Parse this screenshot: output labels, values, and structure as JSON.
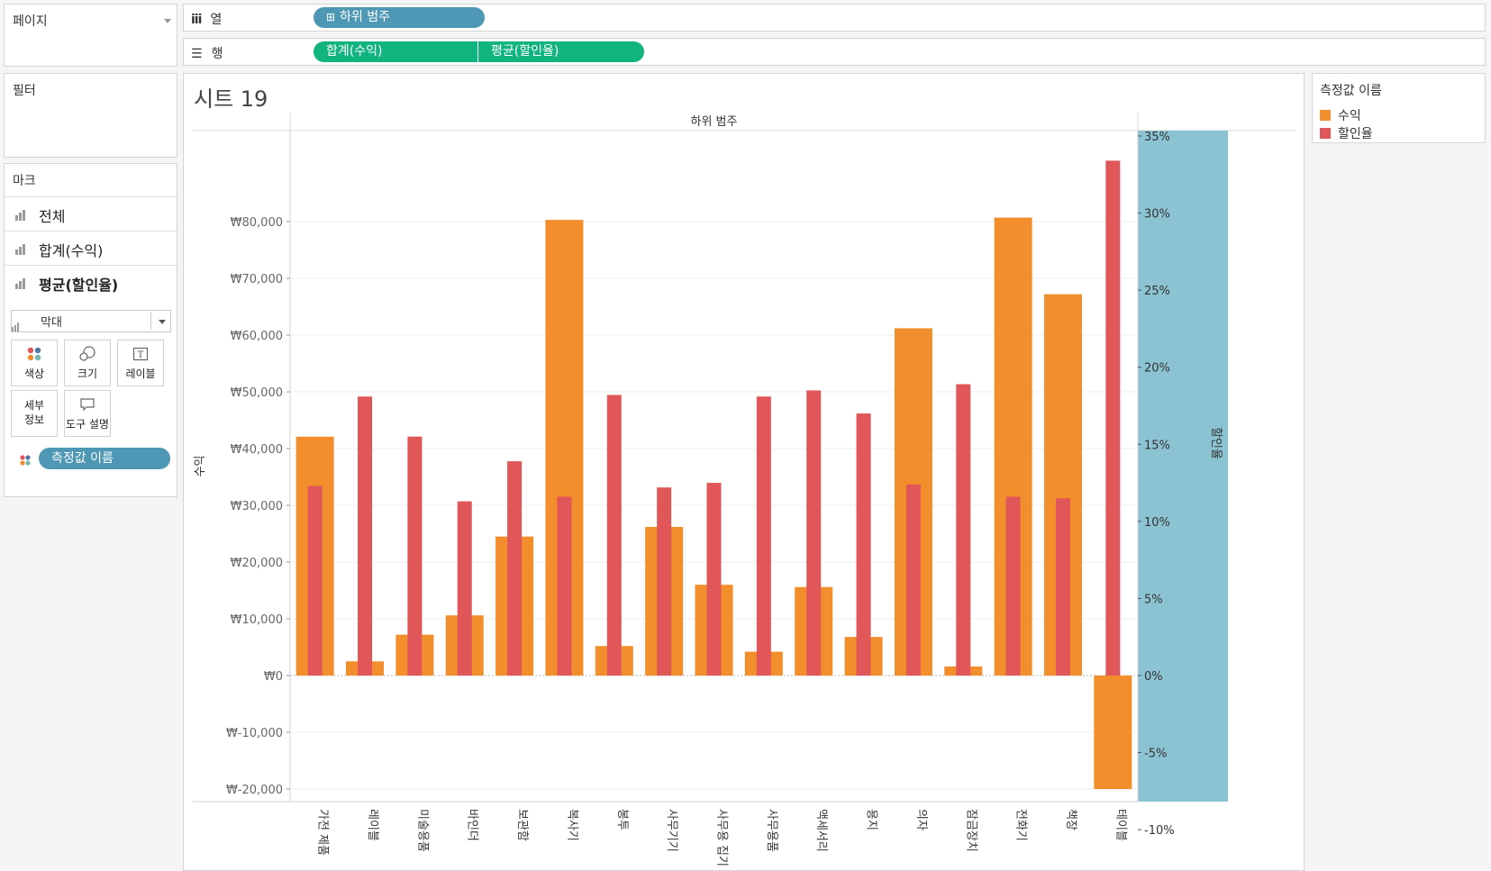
{
  "shelves": {
    "pages_label": "페이지",
    "filters_label": "필터",
    "columns_label": "열",
    "rows_label": "행",
    "columns_pill": "하위 범주",
    "rows_pills": [
      "합계(수익)",
      "평균(할인율)"
    ]
  },
  "marks": {
    "title": "마크",
    "rows": [
      "전체",
      "합계(수익)",
      "평균(할인율)"
    ],
    "mark_type": "막대",
    "cards": {
      "color": "색상",
      "size": "크기",
      "label": "레이블",
      "detail_line1": "세부",
      "detail_line2": "정보",
      "tooltip": "도구 설명"
    },
    "measure_pill": "측정값 이름"
  },
  "sheet": {
    "title": "시트 19"
  },
  "legend": {
    "title": "측정값 이름",
    "items": [
      {
        "label": "수익",
        "color": "#f28e2b"
      },
      {
        "label": "할인율",
        "color": "#e15759"
      }
    ]
  },
  "colors": {
    "profit": "#f28e2b",
    "discount": "#e15759",
    "axis_band": "#8cc3d3",
    "pill_blue": "#4e97b5",
    "pill_green": "#11b37f"
  },
  "chart_data": {
    "type": "bar",
    "header": "하위 범주",
    "categories": [
      "가전 제품",
      "레이블",
      "미술용품",
      "바인더",
      "보관함",
      "복사기",
      "봉투",
      "사무기기",
      "사무용 집기",
      "사무용품",
      "액세서리",
      "용지",
      "의자",
      "잠금장치",
      "전화기",
      "책장",
      "테이블"
    ],
    "series": [
      {
        "name": "수익",
        "axis": "left",
        "values": [
          42100,
          2500,
          7200,
          10600,
          24500,
          80300,
          5200,
          26200,
          16000,
          4200,
          15600,
          6800,
          61200,
          1600,
          80700,
          67200,
          -20000
        ]
      },
      {
        "name": "할인율",
        "axis": "right",
        "values": [
          0.123,
          0.181,
          0.155,
          0.113,
          0.139,
          0.116,
          0.182,
          0.122,
          0.125,
          0.181,
          0.185,
          0.17,
          0.124,
          0.189,
          0.116,
          0.115,
          0.334
        ]
      }
    ],
    "ylabel": "수익",
    "y2label": "할인율",
    "ylim": [
      -25000,
      85000
    ],
    "yticks": [
      -20000,
      -10000,
      0,
      10000,
      20000,
      30000,
      40000,
      50000,
      60000,
      70000,
      80000
    ],
    "ytick_labels": [
      "₩-20,000",
      "₩-10,000",
      "₩0",
      "₩10,000",
      "₩20,000",
      "₩30,000",
      "₩40,000",
      "₩50,000",
      "₩60,000",
      "₩70,000",
      "₩80,000"
    ],
    "y2lim": [
      -0.1,
      0.35
    ],
    "y2ticks": [
      -0.1,
      -0.05,
      0,
      0.05,
      0.1,
      0.15,
      0.2,
      0.25,
      0.3,
      0.35
    ],
    "y2tick_labels": [
      "-10%",
      "-5%",
      "0%",
      "5%",
      "10%",
      "15%",
      "20%",
      "25%",
      "30%",
      "35%"
    ]
  }
}
